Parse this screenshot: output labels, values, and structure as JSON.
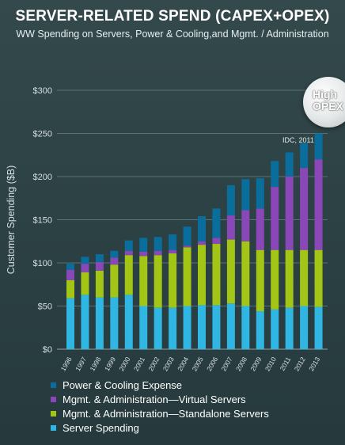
{
  "title": "SERVER-RELATED SPEND (CAPEX+OPEX)",
  "subtitle": "WW Spending on Servers, Power & Cooling,and Mgmt. / Administration",
  "bubble": {
    "line1": "High",
    "line2": "OPEX"
  },
  "source": "IDC, 2011",
  "chart_data": {
    "type": "bar",
    "stacked": true,
    "ylabel": "Customer Spending ($B)",
    "ylim": [
      0,
      300
    ],
    "yticks": [
      "$0",
      "$50",
      "$100",
      "$150",
      "$200",
      "$250",
      "$300"
    ],
    "grid": true,
    "legend_position": "bottom",
    "categories": [
      "1996",
      "1997",
      "1998",
      "1999",
      "2000",
      "2001",
      "2002",
      "2003",
      "2004",
      "2005",
      "2006",
      "2007",
      "2008",
      "2009",
      "2010",
      "2011",
      "2012",
      "2013"
    ],
    "series": [
      {
        "name": "Server Spending",
        "color": "#2fb6e3",
        "values": [
          59,
          63,
          60,
          60,
          63,
          50,
          48,
          48,
          50,
          51,
          51,
          53,
          50,
          44,
          46,
          48,
          50,
          49
        ]
      },
      {
        "name": "Mgmt. & Administration—Standalone Servers",
        "color": "#a2c516",
        "values": [
          21,
          26,
          31,
          38,
          46,
          58,
          61,
          63,
          68,
          70,
          71,
          74,
          75,
          71,
          69,
          67,
          65,
          66
        ]
      },
      {
        "name": "Mgmt. & Administration—Virtual Servers",
        "color": "#8a47b8",
        "values": [
          12,
          10,
          10,
          8,
          5,
          5,
          5,
          4,
          2,
          4,
          7,
          28,
          36,
          48,
          73,
          85,
          95,
          105
        ]
      },
      {
        "name": "Power & Cooling Expense",
        "color": "#0a6e9c",
        "values": [
          7,
          8,
          9,
          8,
          12,
          16,
          16,
          18,
          22,
          29,
          34,
          35,
          36,
          35,
          30,
          28,
          29,
          30
        ]
      }
    ]
  }
}
